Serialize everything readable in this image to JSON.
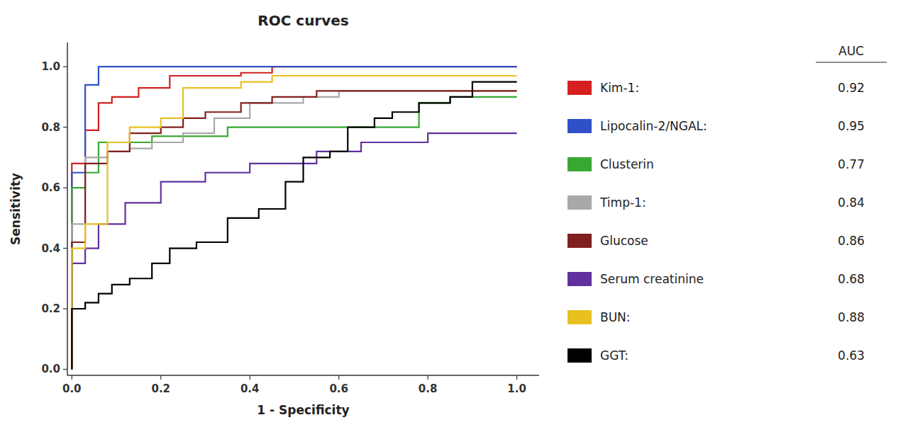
{
  "chart_data": {
    "type": "line",
    "title": "ROC curves",
    "x_label": "1 - Specificity",
    "y_label": "Sensitivity",
    "xlim": [
      -0.01,
      1.05
    ],
    "ylim": [
      -0.02,
      1.08
    ],
    "xticks": [
      {
        "value": 0.0,
        "label": "0.0"
      },
      0.2,
      0.4,
      0.6,
      0.8,
      {
        "value": 1.0,
        "label": "1.0"
      }
    ],
    "yticks": [
      {
        "value": 0.0,
        "label": "0.0"
      },
      0.2,
      0.4,
      0.6,
      0.8,
      {
        "value": 1.0,
        "label": "1.0"
      }
    ],
    "grid": false,
    "legend": "right",
    "legend_title": "AUC",
    "series": [
      {
        "name": "Kim-1:",
        "color": "#d42020",
        "auc": 0.92,
        "x": [
          0.0,
          0.0,
          0.03,
          0.03,
          0.06,
          0.06,
          0.09,
          0.09,
          0.15,
          0.15,
          0.22,
          0.22,
          0.38,
          0.38,
          0.45,
          0.45,
          0.52,
          0.52,
          0.6,
          0.6,
          1.0
        ],
        "values": [
          0.0,
          0.68,
          0.68,
          0.79,
          0.79,
          0.88,
          0.88,
          0.9,
          0.9,
          0.93,
          0.93,
          0.97,
          0.97,
          0.98,
          0.98,
          1.0,
          1.0,
          1.0,
          1.0,
          1.0,
          1.0
        ]
      },
      {
        "name": "Lipocalin-2/NGAL:",
        "color": "#3050c8",
        "auc": 0.95,
        "x": [
          0.0,
          0.0,
          0.03,
          0.03,
          0.06,
          0.06,
          0.42,
          0.42,
          0.55,
          0.55,
          1.0
        ],
        "values": [
          0.0,
          0.65,
          0.65,
          0.94,
          0.94,
          1.0,
          1.0,
          1.0,
          1.0,
          1.0,
          1.0
        ]
      },
      {
        "name": "Clusterin",
        "color": "#38a832",
        "auc": 0.77,
        "x": [
          0.0,
          0.0,
          0.03,
          0.03,
          0.06,
          0.06,
          0.1,
          0.1,
          0.18,
          0.18,
          0.35,
          0.35,
          0.55,
          0.55,
          0.62,
          0.62,
          0.78,
          0.78,
          0.85,
          0.85,
          1.0
        ],
        "values": [
          0.0,
          0.6,
          0.6,
          0.65,
          0.65,
          0.75,
          0.75,
          0.75,
          0.75,
          0.77,
          0.77,
          0.8,
          0.8,
          0.8,
          0.8,
          0.8,
          0.8,
          0.88,
          0.88,
          0.9,
          0.9
        ]
      },
      {
        "name": "Timp-1:",
        "color": "#a8a8a8",
        "auc": 0.84,
        "x": [
          0.0,
          0.0,
          0.03,
          0.03,
          0.08,
          0.08,
          0.13,
          0.13,
          0.18,
          0.18,
          0.25,
          0.25,
          0.32,
          0.32,
          0.4,
          0.4,
          0.52,
          0.52,
          0.6,
          0.6,
          1.0
        ],
        "values": [
          0.0,
          0.48,
          0.48,
          0.7,
          0.7,
          0.72,
          0.72,
          0.73,
          0.73,
          0.75,
          0.75,
          0.78,
          0.78,
          0.83,
          0.83,
          0.88,
          0.88,
          0.9,
          0.9,
          0.92,
          0.92
        ]
      },
      {
        "name": "Glucose",
        "color": "#802020",
        "auc": 0.86,
        "x": [
          0.0,
          0.0,
          0.03,
          0.03,
          0.08,
          0.08,
          0.13,
          0.13,
          0.2,
          0.2,
          0.25,
          0.25,
          0.3,
          0.3,
          0.38,
          0.38,
          0.45,
          0.45,
          0.55,
          0.55,
          1.0
        ],
        "values": [
          0.0,
          0.42,
          0.42,
          0.68,
          0.68,
          0.72,
          0.72,
          0.78,
          0.78,
          0.8,
          0.8,
          0.83,
          0.83,
          0.85,
          0.85,
          0.88,
          0.88,
          0.9,
          0.9,
          0.92,
          0.92
        ]
      },
      {
        "name": "Serum creatinine",
        "color": "#6030a0",
        "auc": 0.68,
        "x": [
          0.0,
          0.0,
          0.03,
          0.03,
          0.06,
          0.06,
          0.12,
          0.12,
          0.2,
          0.2,
          0.3,
          0.3,
          0.4,
          0.4,
          0.55,
          0.55,
          0.65,
          0.65,
          0.8,
          0.8,
          1.0
        ],
        "values": [
          0.0,
          0.35,
          0.35,
          0.4,
          0.4,
          0.48,
          0.48,
          0.55,
          0.55,
          0.62,
          0.62,
          0.65,
          0.65,
          0.68,
          0.68,
          0.72,
          0.72,
          0.75,
          0.75,
          0.78,
          0.78
        ]
      },
      {
        "name": "BUN:",
        "color": "#e8c020",
        "auc": 0.88,
        "x": [
          0.0,
          0.0,
          0.03,
          0.03,
          0.08,
          0.08,
          0.13,
          0.13,
          0.2,
          0.2,
          0.25,
          0.25,
          0.38,
          0.38,
          0.45,
          0.45,
          0.52,
          0.52,
          1.0
        ],
        "values": [
          0.0,
          0.4,
          0.4,
          0.48,
          0.48,
          0.75,
          0.75,
          0.8,
          0.8,
          0.83,
          0.83,
          0.93,
          0.93,
          0.95,
          0.95,
          0.97,
          0.97,
          0.97,
          0.97
        ]
      },
      {
        "name": "GGT:",
        "color": "#000000",
        "auc": 0.63,
        "x": [
          0.0,
          0.0,
          0.03,
          0.03,
          0.06,
          0.06,
          0.09,
          0.09,
          0.13,
          0.13,
          0.18,
          0.18,
          0.22,
          0.22,
          0.28,
          0.28,
          0.35,
          0.35,
          0.42,
          0.42,
          0.48,
          0.48,
          0.52,
          0.52,
          0.58,
          0.58,
          0.62,
          0.62,
          0.68,
          0.68,
          0.72,
          0.72,
          0.78,
          0.78,
          0.85,
          0.85,
          0.9,
          0.9,
          1.0
        ],
        "values": [
          0.0,
          0.2,
          0.2,
          0.22,
          0.22,
          0.25,
          0.25,
          0.28,
          0.28,
          0.3,
          0.3,
          0.35,
          0.35,
          0.4,
          0.4,
          0.42,
          0.42,
          0.5,
          0.5,
          0.53,
          0.53,
          0.62,
          0.62,
          0.7,
          0.7,
          0.72,
          0.72,
          0.8,
          0.8,
          0.83,
          0.83,
          0.85,
          0.85,
          0.88,
          0.88,
          0.9,
          0.9,
          0.95,
          0.95
        ]
      }
    ]
  }
}
